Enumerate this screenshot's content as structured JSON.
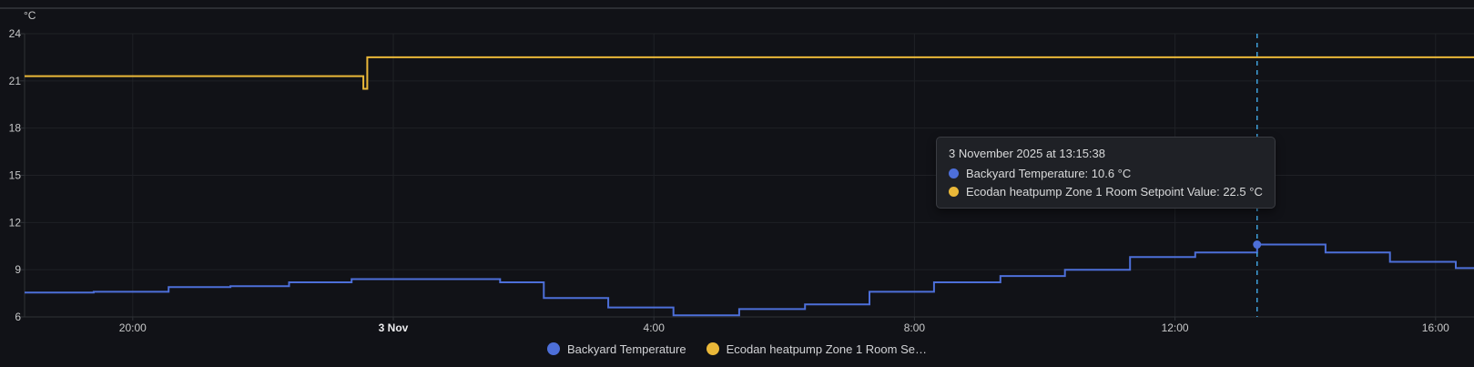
{
  "colors": {
    "background": "#111217",
    "grid": "#1f2126",
    "axis": "#2e3136",
    "axis_text": "#c7c8c9",
    "axis_text_bold": "#ececee",
    "blue": "#4d6fd9",
    "yellow": "#eab839",
    "cursor": "#3fa1dc",
    "tooltip_bg": "#1f2126",
    "tooltip_border": "#3a3c42",
    "top_strip": "#2c2e33"
  },
  "tooltip": {
    "title": "3 November 2025 at 13:15:38",
    "rows": [
      {
        "text": "Backyard Temperature: 10.6 °C",
        "color_key": "blue"
      },
      {
        "text": "Ecodan heatpump Zone 1 Room Setpoint Value: 22.5 °C",
        "color_key": "yellow"
      }
    ]
  },
  "legend": {
    "items": [
      {
        "label": "Backyard Temperature",
        "color_key": "blue"
      },
      {
        "label": "Ecodan heatpump Zone 1 Room Se…",
        "color_key": "yellow"
      }
    ]
  },
  "chart_data": {
    "type": "line",
    "line_style": "step-after",
    "title": "",
    "grid": true,
    "y_axis": {
      "unit": "°C",
      "ticks": [
        6,
        9,
        12,
        15,
        18,
        21,
        24
      ],
      "range": [
        6,
        24
      ]
    },
    "x_axis": {
      "h_unit": "hours relative to 3 Nov 2025 00:00 (negative = 2 Nov)",
      "range_h": [
        -5.66,
        16.64
      ],
      "ticks": [
        {
          "h": -4,
          "label": "20:00",
          "bold": false
        },
        {
          "h": 0,
          "label": "3 Nov",
          "bold": true
        },
        {
          "h": 4,
          "label": "4:00",
          "bold": false
        },
        {
          "h": 8,
          "label": "8:00",
          "bold": false
        },
        {
          "h": 12,
          "label": "12:00",
          "bold": false
        },
        {
          "h": 16,
          "label": "16:00",
          "bold": false
        }
      ]
    },
    "series": [
      {
        "name": "Backyard Temperature",
        "color_key": "blue",
        "points": [
          [
            -5.66,
            7.55
          ],
          [
            -4.6,
            7.6
          ],
          [
            -3.45,
            7.9
          ],
          [
            -2.5,
            7.95
          ],
          [
            -1.6,
            8.2
          ],
          [
            -0.64,
            8.4
          ],
          [
            1.64,
            8.2
          ],
          [
            2.31,
            7.2
          ],
          [
            3.3,
            6.6
          ],
          [
            4.3,
            6.1
          ],
          [
            5.31,
            6.5
          ],
          [
            6.32,
            6.8
          ],
          [
            7.31,
            7.6
          ],
          [
            8.3,
            8.2
          ],
          [
            9.32,
            8.6
          ],
          [
            10.31,
            9.0
          ],
          [
            11.31,
            9.8
          ],
          [
            12.31,
            10.1
          ],
          [
            13.26,
            10.6
          ],
          [
            14.31,
            10.1
          ],
          [
            15.3,
            9.5
          ],
          [
            16.31,
            9.1
          ]
        ]
      },
      {
        "name": "Ecodan heatpump Zone 1 Room Setpoint Value",
        "color_key": "yellow",
        "points": [
          [
            -5.66,
            21.3
          ],
          [
            -0.46,
            20.5
          ],
          [
            -0.4,
            22.5
          ]
        ]
      }
    ],
    "cursor": {
      "h": 13.26,
      "time_label": "3 November 2025 at 13:15:38",
      "marker": {
        "series": 0,
        "h": 13.26,
        "v": 10.6
      }
    },
    "legend_position": "bottom-center"
  }
}
